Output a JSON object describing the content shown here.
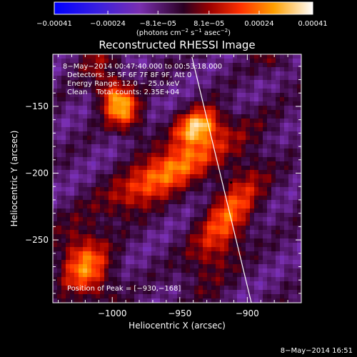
{
  "chart_data": {
    "type": "heatmap",
    "title": "Reconstructed RHESSI Image",
    "xlabel": "Heliocentric X (arcsec)",
    "ylabel": "Heliocentric Y (arcsec)",
    "xlim": [
      -1044,
      -860
    ],
    "ylim": [
      -297,
      -111
    ],
    "x_ticks": [
      -1000,
      -950,
      -900
    ],
    "x_tick_labels": [
      "−1000",
      "−950",
      "−900"
    ],
    "y_ticks": [
      -150,
      -200,
      -250
    ],
    "y_tick_labels": [
      "−150",
      "−200",
      "−250"
    ],
    "colorbar": {
      "range": [
        -0.00041,
        0.00041
      ],
      "ticks": [
        -0.00041,
        -0.00024,
        -8.1e-05,
        8.1e-05,
        0.00024,
        0.00041
      ],
      "tick_labels": [
        "−0.00041",
        "−0.00024",
        "−8.1e−05",
        "8.1e−05",
        "0.00024",
        "0.00041"
      ],
      "units_prefix": "(photons cm",
      "units_exp1": "−2",
      "units_mid1": " s",
      "units_exp2": "−1",
      "units_mid2": " asec",
      "units_exp3": "−2",
      "units_suffix": ")"
    },
    "annotations": {
      "time_range": "8−May−2014 00:47:40.000 to 00:53:18.000",
      "detectors": "Detectors: 3F 5F 6F 7F 8F 9F, Att 0",
      "energy_range": "Energy Range: 12.0 − 25.0 keV",
      "clean_counts": "Clean    Total counts: 2.35E+04",
      "peak_position": "Position of Peak = [−930,−168]"
    },
    "peak": {
      "x": -930,
      "y": -168
    },
    "limb_line": {
      "x_start": -941,
      "y_start": -113,
      "x_end": -897,
      "y_end": -297
    },
    "sources": [
      {
        "x": -995,
        "y": -148,
        "sx": 15,
        "sy": 9,
        "angle": 118,
        "amp": 0.00036
      },
      {
        "x": -958,
        "y": -198,
        "sx": 36,
        "sy": 10,
        "angle": 32,
        "amp": 0.00036
      },
      {
        "x": -937,
        "y": -165,
        "sx": 12,
        "sy": 8,
        "angle": 30,
        "amp": 0.00039
      },
      {
        "x": -1020,
        "y": -270,
        "sx": 18,
        "sy": 13,
        "angle": 100,
        "amp": 0.0003
      },
      {
        "x": -915,
        "y": -235,
        "sx": 34,
        "sy": 12,
        "angle": 65,
        "amp": 0.00026
      },
      {
        "x": -1015,
        "y": -115,
        "sx": 10,
        "sy": 7,
        "angle": 0,
        "amp": 0.0001
      },
      {
        "x": -880,
        "y": -115,
        "sx": 10,
        "sy": 8,
        "angle": 0,
        "amp": 8e-05
      }
    ],
    "grid": false
  },
  "footer": {
    "date_stamp": "8−May−2014 16:51"
  }
}
